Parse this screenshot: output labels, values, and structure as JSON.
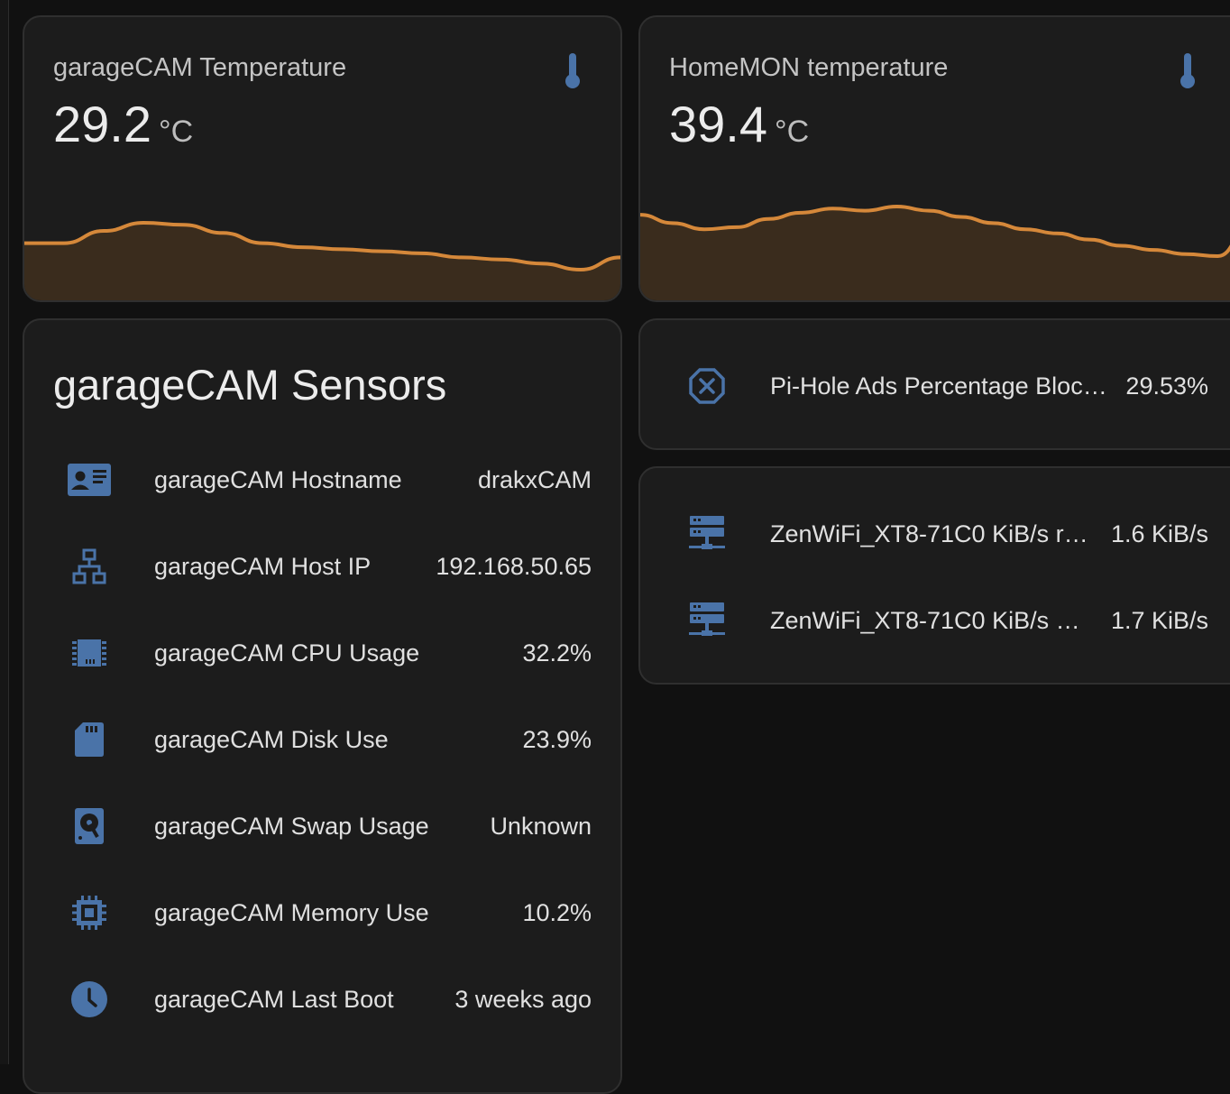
{
  "colors": {
    "accent_line": "#d5883a",
    "accent_fill": "#3a2c1d",
    "icon_blue": "#4a73a8",
    "card_bg": "#1c1c1c",
    "page_bg": "#111111"
  },
  "temp_cards": [
    {
      "name": "garageCAM Temperature",
      "value": "29.2",
      "unit": "°C",
      "icon": "thermometer-icon",
      "history": [
        29.0,
        29.0,
        29.6,
        30.0,
        29.9,
        29.5,
        29.0,
        28.8,
        28.7,
        28.6,
        28.5,
        28.3,
        28.2,
        28.0,
        27.7,
        28.3
      ]
    },
    {
      "name": "HomeMON temperature",
      "value": "39.4",
      "unit": "°C",
      "icon": "thermometer-icon",
      "history": [
        40.2,
        39.8,
        39.5,
        39.6,
        40.0,
        40.3,
        40.5,
        40.4,
        40.6,
        40.4,
        40.1,
        39.8,
        39.5,
        39.3,
        39.0,
        38.7,
        38.5,
        38.3,
        38.2,
        39.6
      ]
    }
  ],
  "sensors": {
    "title": "garageCAM Sensors",
    "rows": [
      {
        "icon": "id-card-icon",
        "label": "garageCAM Hostname",
        "value": "drakxCAM"
      },
      {
        "icon": "network-icon",
        "label": "garageCAM Host IP",
        "value": "192.168.50.65"
      },
      {
        "icon": "cpu-icon",
        "label": "garageCAM CPU Usage",
        "value": "32.2%"
      },
      {
        "icon": "sd-card-icon",
        "label": "garageCAM Disk Use",
        "value": "23.9%"
      },
      {
        "icon": "harddisk-icon",
        "label": "garageCAM Swap Usage",
        "value": "Unknown"
      },
      {
        "icon": "memory-chip-icon",
        "label": "garageCAM Memory Use",
        "value": "10.2%"
      },
      {
        "icon": "clock-icon",
        "label": "garageCAM Last Boot",
        "value": "3 weeks ago"
      }
    ]
  },
  "pihole": {
    "icon": "close-octagon-icon",
    "label": "Pi-Hole Ads Percentage Bloc…",
    "value": "29.53%"
  },
  "zenwifi": {
    "rows": [
      {
        "icon": "server-network-icon",
        "label": "ZenWiFi_XT8-71C0 KiB/s r…",
        "value": "1.6 KiB/s"
      },
      {
        "icon": "server-network-icon",
        "label": "ZenWiFi_XT8-71C0 KiB/s s…",
        "value": "1.7 KiB/s"
      }
    ]
  }
}
